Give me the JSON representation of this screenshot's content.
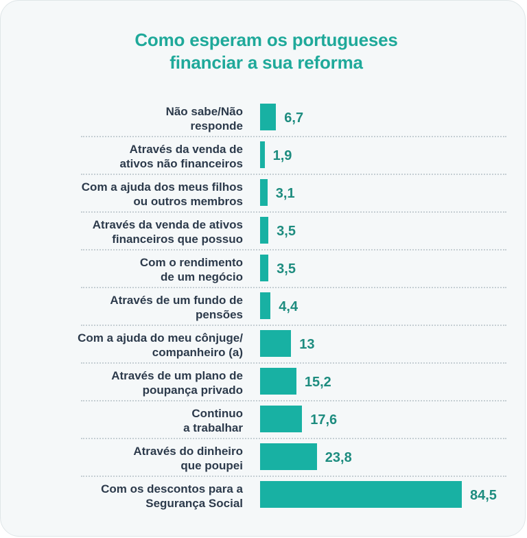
{
  "chart_data": {
    "type": "bar",
    "orientation": "horizontal",
    "title_lines": [
      "Como esperam os portugueses",
      "financiar a sua reforma"
    ],
    "categories": [
      [
        "Não sabe/Não",
        "responde"
      ],
      [
        "Através da venda de",
        "ativos não financeiros"
      ],
      [
        "Com a ajuda dos meus filhos",
        "ou outros membros"
      ],
      [
        "Através da venda de ativos",
        "financeiros que possuo"
      ],
      [
        "Com o rendimento",
        "de um negócio"
      ],
      [
        "Através de um fundo de",
        "pensões"
      ],
      [
        "Com a ajuda do meu cônjuge/",
        "companheiro (a)"
      ],
      [
        "Através de um plano de",
        "poupança privado"
      ],
      [
        "Continuo",
        "a trabalhar"
      ],
      [
        "Através do dinheiro",
        "que poupei"
      ],
      [
        "Com os descontos para a",
        "Segurança Social"
      ]
    ],
    "values": [
      6.7,
      1.9,
      3.1,
      3.5,
      3.5,
      4.4,
      13,
      15.2,
      17.6,
      23.8,
      84.5
    ],
    "value_labels": [
      "6,7",
      "1,9",
      "3,1",
      "3,5",
      "3,5",
      "4,4",
      "13",
      "15,2",
      "17,6",
      "23,8",
      "84,5"
    ],
    "xlim": [
      0,
      84.5
    ],
    "grid": false,
    "legend": "none",
    "colors": {
      "bar": "#18b1a3",
      "title": "#1fa99a",
      "value": "#1d8c7f",
      "label": "#2c3a4b",
      "separator": "#c5ced3",
      "background": "#f5f8f9"
    }
  }
}
